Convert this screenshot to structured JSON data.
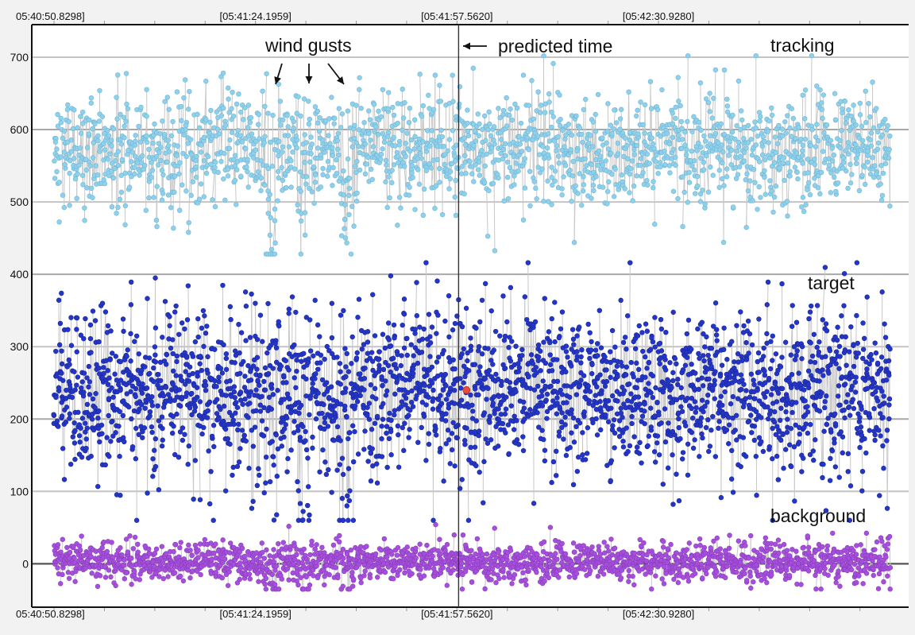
{
  "chart_data": {
    "type": "scatter",
    "title": "",
    "xlabel": "",
    "ylabel": "",
    "x_ticks": [
      "05:40:50.8298]",
      "[05:41:24.1959]",
      "[05:41:57.5620]",
      "[05:42:30.9280]"
    ],
    "x_tick_times_s": [
      0,
      33.3661,
      66.7322,
      100.0982
    ],
    "xlim_s": [
      0,
      138.5
    ],
    "y_ticks": [
      0,
      100,
      200,
      300,
      400,
      500,
      600,
      700
    ],
    "ylim": [
      -60,
      745
    ],
    "grid": true,
    "series": [
      {
        "name": "tracking",
        "color": "#8fd0ea",
        "stroke": "#6fb6d6",
        "mean": 572,
        "spread": 38,
        "min": 428,
        "max": 702,
        "points_per_column": 3
      },
      {
        "name": "target",
        "color": "#2436c8",
        "stroke": "#1a2699",
        "mean": 240,
        "spread": 52,
        "min": 60,
        "max": 416,
        "points_per_column": 4
      },
      {
        "name": "background",
        "color": "#a64fdc",
        "stroke": "#8a3dbd",
        "mean": 2,
        "spread": 13,
        "min": -35,
        "max": 62,
        "points_per_column": 3
      }
    ],
    "predicted_time_s": 67.0,
    "predicted_point": {
      "x_s": 68.3,
      "y": 240,
      "color": "#e84a3c"
    },
    "wind_gust_times_s": [
      36.0,
      41.5,
      48.5
    ],
    "annotations": {
      "wind_gusts": "wind gusts",
      "predicted_time": "predicted time",
      "tracking": "tracking",
      "target": "target",
      "background": "background"
    }
  }
}
